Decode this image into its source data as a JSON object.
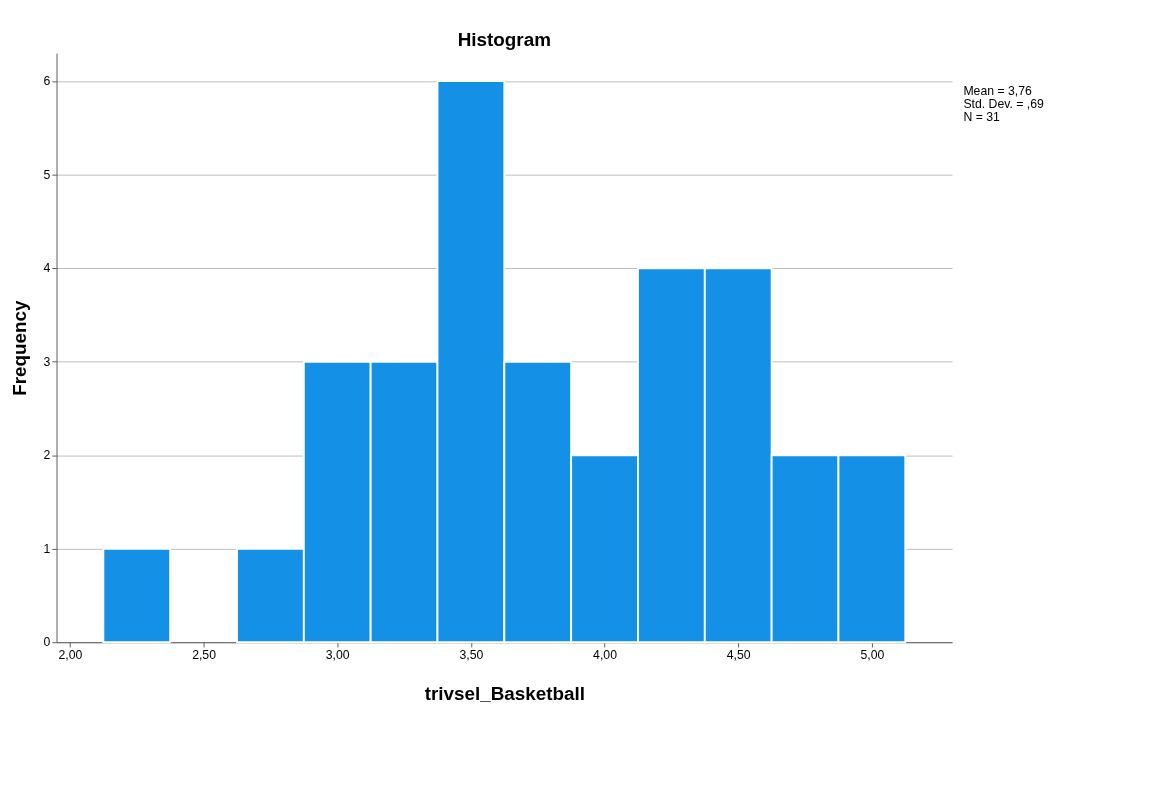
{
  "chart_data": {
    "type": "histogram",
    "title": "Histogram",
    "xlabel": "trivsel_Basketball",
    "ylabel": "Frequency",
    "bins": [
      2.125,
      2.375,
      2.625,
      2.875,
      3.125,
      3.375,
      3.625,
      3.875,
      4.125,
      4.375,
      4.625,
      4.875,
      5.125
    ],
    "values": [
      1,
      0,
      1,
      3,
      3,
      6,
      3,
      2,
      4,
      4,
      2,
      2
    ],
    "color": "#1490e6",
    "xlim": [
      1.95,
      5.3
    ],
    "xticks": [
      {
        "value": 2,
        "label": "2,00"
      },
      {
        "value": 2.5,
        "label": "2,50"
      },
      {
        "value": 3,
        "label": "3,00"
      },
      {
        "value": 3.5,
        "label": "3,50"
      },
      {
        "value": 4,
        "label": "4,00"
      },
      {
        "value": 4.5,
        "label": "4,50"
      },
      {
        "value": 5,
        "label": "5,00"
      }
    ],
    "ylim": [
      0,
      6.3
    ],
    "yticks": [
      0,
      1,
      2,
      3,
      4,
      5,
      6
    ],
    "grid": "y",
    "annotations": [
      "Mean = 3,76",
      "Std. Dev. = ,69",
      "N = 31"
    ]
  }
}
